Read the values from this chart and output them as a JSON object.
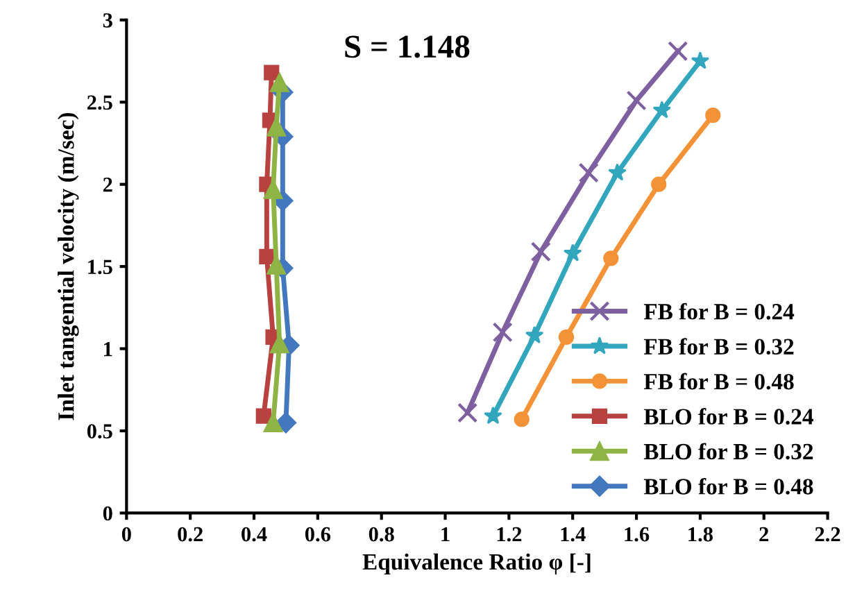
{
  "chart_data": {
    "type": "line",
    "annotations": [
      "S = 1.148"
    ],
    "xlabel": "Equivalence Ratio φ [-]",
    "ylabel": "Inlet tangential velocity (m/sec)",
    "xlim": [
      0,
      2.2
    ],
    "xticks": [
      0,
      0.2,
      0.4,
      0.6,
      0.8,
      1,
      1.2,
      1.4,
      1.6,
      1.8,
      2,
      2.2
    ],
    "ylim": [
      0,
      3
    ],
    "yticks": [
      0,
      0.5,
      1,
      1.5,
      2,
      2.5,
      3
    ],
    "grid": false,
    "legend": "bottom right",
    "series": [
      {
        "name": "FB for B = 0.24",
        "color": "#7e5fa0",
        "marker": "cross",
        "x": [
          1.07,
          1.18,
          1.3,
          1.45,
          1.6,
          1.73
        ],
        "values": [
          0.61,
          1.1,
          1.59,
          2.07,
          2.51,
          2.81
        ]
      },
      {
        "name": "FB for B = 0.32",
        "color": "#31a6bd",
        "marker": "star",
        "x": [
          1.15,
          1.28,
          1.4,
          1.54,
          1.68,
          1.8
        ],
        "values": [
          0.59,
          1.08,
          1.58,
          2.07,
          2.45,
          2.75
        ]
      },
      {
        "name": "FB for B = 0.48",
        "color": "#f39237",
        "marker": "circle",
        "x": [
          1.24,
          1.38,
          1.52,
          1.67,
          1.84
        ],
        "values": [
          0.57,
          1.07,
          1.55,
          2.0,
          2.42
        ]
      },
      {
        "name": "BLO for B = 0.24",
        "color": "#b84240",
        "marker": "square",
        "x": [
          0.43,
          0.46,
          0.44,
          0.44,
          0.45,
          0.455
        ],
        "values": [
          0.59,
          1.07,
          1.56,
          2.0,
          2.39,
          2.68
        ]
      },
      {
        "name": "BLO for B = 0.32",
        "color": "#8fb446",
        "marker": "triangle",
        "x": [
          0.46,
          0.48,
          0.47,
          0.46,
          0.47,
          0.48
        ],
        "values": [
          0.55,
          1.03,
          1.51,
          1.97,
          2.35,
          2.62
        ]
      },
      {
        "name": "BLO for B = 0.48",
        "color": "#4378be",
        "marker": "diamond",
        "x": [
          0.5,
          0.51,
          0.49,
          0.49,
          0.49,
          0.49
        ],
        "values": [
          0.55,
          1.02,
          1.49,
          1.9,
          2.29,
          2.56
        ]
      }
    ]
  }
}
